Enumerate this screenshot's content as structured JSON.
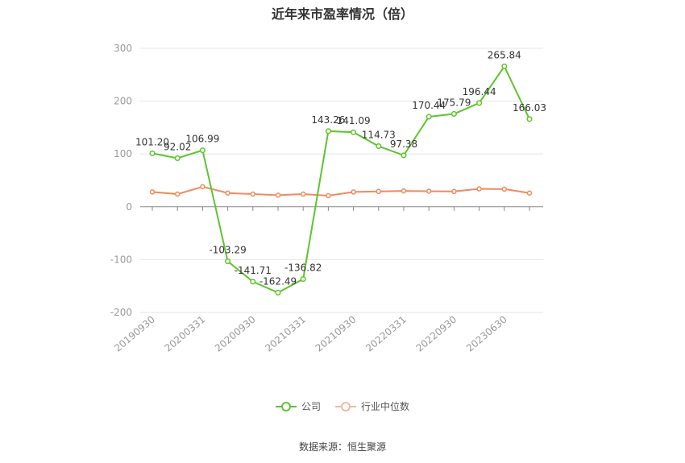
{
  "chart_data": {
    "type": "line",
    "title": "近年来市盈率情况（倍）",
    "xlabel": "",
    "ylabel": "",
    "ylim": [
      -200,
      300
    ],
    "yticks": [
      -200,
      -100,
      0,
      100,
      200,
      300
    ],
    "xticklabels": [
      "20190930",
      "20200331",
      "20200930",
      "20210331",
      "20210930",
      "20220331",
      "20220930",
      "20230630"
    ],
    "grid": true,
    "legend_position": "bottom",
    "series": [
      {
        "name": "公司",
        "color": "#5ec42e",
        "values": [
          101.2,
          92.02,
          106.99,
          -103.29,
          -141.71,
          -162.49,
          -136.82,
          143.26,
          141.09,
          114.73,
          97.38,
          170.44,
          175.79,
          196.44,
          265.84,
          166.03
        ],
        "labels": [
          "101.20",
          "92.02",
          "106.99",
          "-103.29",
          "-141.71",
          "-162.49",
          "-136.82",
          "143.26",
          "141.09",
          "114.73",
          "97.38",
          "170.44",
          "175.79",
          "196.44",
          "265.84",
          "166.03"
        ]
      },
      {
        "name": "行业中位数",
        "color": "#ef8a5f",
        "values": [
          28,
          24,
          38,
          26,
          24,
          22,
          24,
          21,
          28,
          29,
          30,
          29.5,
          29,
          34,
          33.5,
          26
        ]
      }
    ]
  },
  "source": "数据来源：恒生聚源"
}
